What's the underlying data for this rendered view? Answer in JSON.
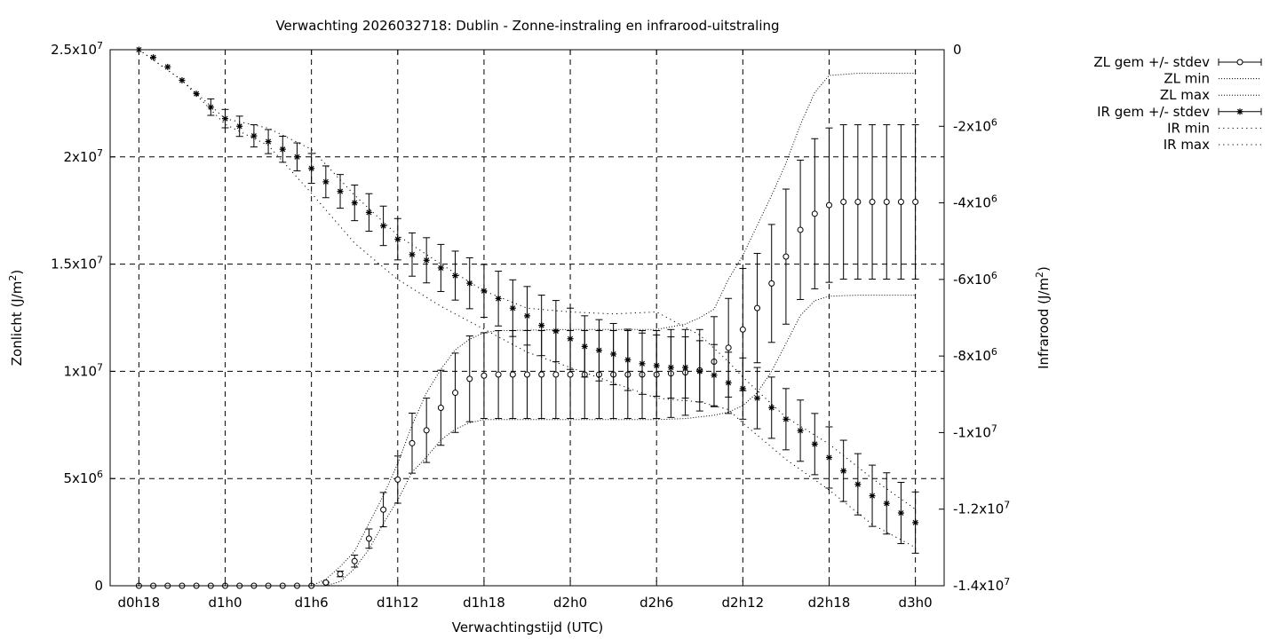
{
  "chart_data": {
    "type": "line",
    "title": "Verwachting 2026032718: Dublin - Zonne-instraling en infrarood-uitstraling",
    "xlabel": "Verwachtingstijd (UTC)",
    "ylabel_left": "Zonlicht (J/m²)",
    "ylabel_left_main": "Zonlicht (J/m",
    "ylabel_right": "Infrarood (J/m²)",
    "ylabel_right_main": "Infrarood (J/m",
    "ylabel_sup": "2",
    "ylabel_close": ")",
    "x_unit": "hours since d0h18",
    "x_range": [
      -2,
      56
    ],
    "x_ticks": [
      {
        "x": 0,
        "label": "d0h18"
      },
      {
        "x": 6,
        "label": "d1h0"
      },
      {
        "x": 12,
        "label": "d1h6"
      },
      {
        "x": 18,
        "label": "d1h12"
      },
      {
        "x": 24,
        "label": "d1h18"
      },
      {
        "x": 30,
        "label": "d2h0"
      },
      {
        "x": 36,
        "label": "d2h6"
      },
      {
        "x": 42,
        "label": "d2h12"
      },
      {
        "x": 48,
        "label": "d2h18"
      },
      {
        "x": 54,
        "label": "d3h0"
      }
    ],
    "y_left_range": [
      0,
      25000000
    ],
    "y_left_ticks": [
      {
        "v": 0,
        "base": "0",
        "exp": ""
      },
      {
        "v": 5000000,
        "base": "5x10",
        "exp": "6"
      },
      {
        "v": 10000000,
        "base": "1x10",
        "exp": "7"
      },
      {
        "v": 15000000,
        "base": "1.5x10",
        "exp": "7"
      },
      {
        "v": 20000000,
        "base": "2x10",
        "exp": "7"
      },
      {
        "v": 25000000,
        "base": "2.5x10",
        "exp": "7"
      }
    ],
    "y_right_range": [
      -14000000,
      0
    ],
    "y_right_ticks": [
      {
        "v": 0,
        "base": "0",
        "exp": ""
      },
      {
        "v": -2000000,
        "base": "-2x10",
        "exp": "6"
      },
      {
        "v": -4000000,
        "base": "-4x10",
        "exp": "6"
      },
      {
        "v": -6000000,
        "base": "-6x10",
        "exp": "6"
      },
      {
        "v": -8000000,
        "base": "-8x10",
        "exp": "6"
      },
      {
        "v": -10000000,
        "base": "-1x10",
        "exp": "7"
      },
      {
        "v": -12000000,
        "base": "-1.2x10",
        "exp": "7"
      },
      {
        "v": -14000000,
        "base": "-1.4x10",
        "exp": "7"
      }
    ],
    "grid": true,
    "legend_position": "right, outside top",
    "series": [
      {
        "name": "ZL gem +/- stdev",
        "axis": "left",
        "marker": "circle",
        "x": [
          0,
          1,
          2,
          3,
          4,
          5,
          6,
          7,
          8,
          9,
          10,
          11,
          12,
          13,
          14,
          15,
          16,
          17,
          18,
          19,
          20,
          21,
          22,
          23,
          24,
          25,
          26,
          27,
          28,
          29,
          30,
          31,
          32,
          33,
          34,
          35,
          36,
          37,
          38,
          39,
          40,
          41,
          42,
          43,
          44,
          45,
          46,
          47,
          48,
          49,
          50,
          51,
          52,
          53,
          54
        ],
        "mean": [
          0,
          0,
          0,
          0,
          0,
          0,
          0,
          0,
          0,
          0,
          0,
          0,
          0,
          150000,
          550000,
          1150000,
          2200000,
          3550000,
          4950000,
          6650000,
          7250000,
          8300000,
          9000000,
          9650000,
          9800000,
          9850000,
          9850000,
          9850000,
          9850000,
          9850000,
          9850000,
          9850000,
          9850000,
          9850000,
          9850000,
          9850000,
          9850000,
          9900000,
          9950000,
          10050000,
          10450000,
          11100000,
          11950000,
          12950000,
          14100000,
          15350000,
          16600000,
          17350000,
          17750000,
          17900000,
          17900000,
          17900000,
          17900000,
          17900000,
          17900000
        ],
        "stdev": [
          0,
          0,
          0,
          0,
          0,
          0,
          0,
          0,
          0,
          0,
          0,
          0,
          0,
          20000,
          130000,
          280000,
          450000,
          800000,
          1100000,
          1400000,
          1500000,
          1750000,
          1850000,
          2000000,
          2000000,
          2050000,
          2050000,
          2050000,
          2050000,
          2050000,
          2050000,
          2050000,
          2050000,
          2050000,
          2050000,
          2050000,
          2050000,
          2050000,
          2000000,
          1900000,
          2100000,
          2300000,
          2850000,
          2550000,
          2750000,
          3150000,
          3250000,
          3500000,
          3600000,
          3600000,
          3600000,
          3600000,
          3600000,
          3600000,
          3600000
        ]
      },
      {
        "name": "ZL min",
        "axis": "left",
        "style": "dotted",
        "x": [
          13,
          14,
          15,
          16,
          17,
          18,
          19,
          20,
          21,
          22,
          23,
          24,
          30,
          36,
          38,
          40,
          41,
          42,
          43,
          44,
          45,
          46,
          47,
          48,
          50,
          54
        ],
        "values": [
          0,
          200000,
          800000,
          1700000,
          2900000,
          4000000,
          5300000,
          6000000,
          6800000,
          7300000,
          7600000,
          7750000,
          7750000,
          7750000,
          7800000,
          7950000,
          8100000,
          8400000,
          9000000,
          10000000,
          11300000,
          12600000,
          13300000,
          13500000,
          13550000,
          13550000
        ]
      },
      {
        "name": "ZL max",
        "axis": "left",
        "style": "dotted",
        "x": [
          12,
          13,
          14,
          15,
          16,
          17,
          18,
          19,
          20,
          21,
          22,
          23,
          24,
          25,
          30,
          36,
          38,
          39,
          40,
          41,
          42,
          43,
          44,
          45,
          46,
          47,
          48,
          50,
          54
        ],
        "values": [
          0,
          300000,
          900000,
          1600000,
          2900000,
          4200000,
          5700000,
          7500000,
          9000000,
          10100000,
          11000000,
          11500000,
          11800000,
          11900000,
          11950000,
          11950000,
          12200000,
          12500000,
          12900000,
          14300000,
          15400000,
          16800000,
          18200000,
          19700000,
          21500000,
          23000000,
          23800000,
          23900000,
          23900000
        ]
      },
      {
        "name": "IR gem +/- stdev",
        "axis": "right",
        "marker": "star",
        "x": [
          0,
          1,
          2,
          3,
          4,
          5,
          6,
          7,
          8,
          9,
          10,
          11,
          12,
          13,
          14,
          15,
          16,
          17,
          18,
          19,
          20,
          21,
          22,
          23,
          24,
          25,
          26,
          27,
          28,
          29,
          30,
          31,
          32,
          33,
          34,
          35,
          36,
          37,
          38,
          39,
          40,
          41,
          42,
          43,
          44,
          45,
          46,
          47,
          48,
          49,
          50,
          51,
          52,
          53,
          54
        ],
        "mean": [
          0,
          -200000,
          -450000,
          -800000,
          -1150000,
          -1500000,
          -1800000,
          -2000000,
          -2250000,
          -2400000,
          -2600000,
          -2800000,
          -3100000,
          -3450000,
          -3700000,
          -4000000,
          -4250000,
          -4600000,
          -4950000,
          -5350000,
          -5500000,
          -5700000,
          -5900000,
          -6100000,
          -6300000,
          -6500000,
          -6750000,
          -6950000,
          -7200000,
          -7350000,
          -7550000,
          -7750000,
          -7850000,
          -7950000,
          -8100000,
          -8200000,
          -8250000,
          -8300000,
          -8300000,
          -8400000,
          -8500000,
          -8700000,
          -8850000,
          -9100000,
          -9350000,
          -9650000,
          -9950000,
          -10300000,
          -10650000,
          -11000000,
          -11350000,
          -11650000,
          -11850000,
          -12100000,
          -12350000
        ]
      },
      {
        "name": "IR min",
        "axis": "right",
        "style": "dotted",
        "x": [
          0,
          3,
          6,
          9,
          12,
          15,
          18,
          21,
          24,
          27,
          30,
          33,
          36,
          39,
          41,
          42,
          45,
          48,
          51,
          54
        ],
        "values": [
          0,
          -800000,
          -1950000,
          -2500000,
          -3750000,
          -5050000,
          -6000000,
          -6700000,
          -7300000,
          -7900000,
          -8300000,
          -8700000,
          -9100000,
          -9200000,
          -9400000,
          -9750000,
          -10700000,
          -11500000,
          -12400000,
          -13000000
        ]
      },
      {
        "name": "IR max",
        "axis": "right",
        "style": "dotted",
        "x": [
          0,
          3,
          6,
          9,
          12,
          15,
          18,
          21,
          24,
          27,
          30,
          33,
          36,
          39,
          41,
          42,
          45,
          48,
          51,
          54
        ],
        "values": [
          0,
          -800000,
          -1800000,
          -2050000,
          -2600000,
          -3800000,
          -4850000,
          -5600000,
          -6300000,
          -6750000,
          -6850000,
          -6900000,
          -6850000,
          -7450000,
          -8150000,
          -8550000,
          -9600000,
          -10300000,
          -11200000,
          -12000000
        ]
      }
    ]
  }
}
